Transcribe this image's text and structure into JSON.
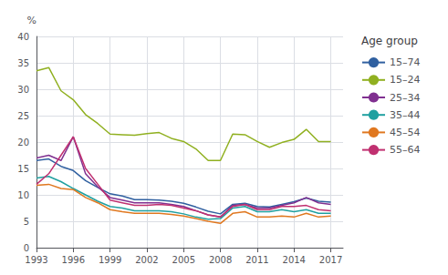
{
  "chart_data": {
    "type": "line",
    "x": [
      1993,
      1994,
      1995,
      1996,
      1997,
      1998,
      1999,
      2000,
      2001,
      2002,
      2003,
      2004,
      2005,
      2006,
      2007,
      2008,
      2009,
      2010,
      2011,
      2012,
      2013,
      2014,
      2015,
      2016,
      2017
    ],
    "series": [
      {
        "name": "15–74",
        "color": "#3060A0",
        "values": [
          16.5,
          16.8,
          15.4,
          14.6,
          12.7,
          11.4,
          10.2,
          9.8,
          9.1,
          9.1,
          9.0,
          8.8,
          8.4,
          7.7,
          6.9,
          6.4,
          8.2,
          8.4,
          7.8,
          7.7,
          8.2,
          8.7,
          9.4,
          8.8,
          8.6
        ]
      },
      {
        "name": "15–24",
        "color": "#90B020",
        "values": [
          33.5,
          34.1,
          29.7,
          28.0,
          25.2,
          23.5,
          21.5,
          21.4,
          21.3,
          21.6,
          21.8,
          20.7,
          20.1,
          18.7,
          16.5,
          16.5,
          21.5,
          21.4,
          20.1,
          19.0,
          19.9,
          20.5,
          22.4,
          20.1,
          20.1
        ]
      },
      {
        "name": "25–34",
        "color": "#803090",
        "values": [
          17.0,
          17.5,
          16.5,
          21.0,
          14.0,
          11.5,
          9.5,
          9.0,
          8.5,
          8.5,
          8.5,
          8.2,
          7.8,
          7.0,
          6.2,
          5.8,
          8.0,
          8.2,
          7.5,
          7.5,
          8.0,
          8.5,
          9.5,
          8.5,
          8.2
        ]
      },
      {
        "name": "35–44",
        "color": "#20A0A0",
        "values": [
          13.2,
          13.5,
          12.5,
          11.2,
          10.0,
          8.8,
          7.8,
          7.5,
          7.0,
          7.0,
          7.0,
          6.8,
          6.4,
          5.8,
          5.4,
          5.5,
          7.5,
          7.8,
          6.8,
          6.8,
          7.2,
          6.8,
          7.2,
          6.5,
          6.5
        ]
      },
      {
        "name": "45–54",
        "color": "#E07820",
        "values": [
          11.8,
          12.0,
          11.2,
          11.0,
          9.5,
          8.5,
          7.2,
          6.8,
          6.5,
          6.5,
          6.5,
          6.3,
          6.0,
          5.5,
          5.0,
          4.6,
          6.5,
          6.8,
          5.8,
          5.8,
          6.0,
          5.8,
          6.5,
          5.8,
          6.0
        ]
      },
      {
        "name": "55–64",
        "color": "#C03070",
        "values": [
          12.0,
          14.0,
          17.5,
          21.0,
          15.0,
          12.0,
          9.0,
          8.5,
          8.0,
          8.0,
          8.2,
          8.0,
          7.5,
          7.0,
          6.2,
          5.8,
          7.8,
          8.2,
          7.2,
          7.2,
          7.8,
          7.8,
          8.0,
          7.2,
          7.0
        ]
      }
    ],
    "ylabel": "%",
    "legend_title": "Age group",
    "xlim": [
      1993,
      2018
    ],
    "xticks": [
      1993,
      1996,
      1999,
      2002,
      2005,
      2008,
      2011,
      2014,
      2017
    ],
    "ylim": [
      0,
      40
    ],
    "yticks": [
      0,
      5,
      10,
      15,
      20,
      25,
      30,
      35,
      40
    ],
    "grid": true,
    "legend": "right"
  }
}
